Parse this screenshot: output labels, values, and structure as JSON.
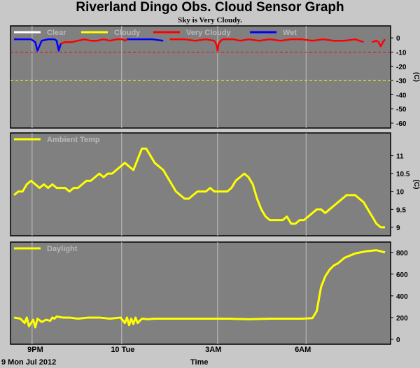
{
  "title": "Riverland Dingo Obs. Cloud Sensor Graph",
  "subtitle": "Sky is Very Cloudy.",
  "footer": {
    "date": "9 Mon Jul 2012",
    "time_label": "Time"
  },
  "x_ticks": [
    "9PM",
    "10 Tue",
    "3AM",
    "6AM"
  ],
  "chart_data": [
    {
      "type": "line",
      "name": "cloud",
      "ylabel": "(C)",
      "ylim": [
        -60,
        5
      ],
      "yticks": [
        0,
        -10,
        -20,
        -30,
        -40,
        -50,
        -60
      ],
      "legend": [
        {
          "name": "Clear",
          "color": "#ffffff"
        },
        {
          "name": "Cloudy",
          "color": "#ffff00"
        },
        {
          "name": "Very Cloudy",
          "color": "#ff0000"
        },
        {
          "name": "Wet",
          "color": "#0000ff"
        }
      ],
      "thresholds": [
        {
          "value": -10,
          "color": "#ff0000"
        },
        {
          "value": -30,
          "color": "#ffff00"
        }
      ],
      "x": [
        0,
        0.3,
        0.6,
        0.8,
        1.0,
        1.1,
        1.3,
        1.6,
        1.9,
        2.0,
        2.1,
        2.2,
        2.4,
        2.7,
        3.0,
        3.3,
        3.6,
        3.9,
        4.2,
        4.5,
        4.8,
        5.1,
        5.2,
        5.3,
        5.4,
        5.7,
        6.0,
        6.5,
        7.0,
        7.3,
        7.6,
        8.0,
        8.5,
        9.0,
        9.4,
        9.5,
        9.55,
        9.6,
        9.7,
        9.8,
        10.0,
        10.3,
        10.6,
        11.0,
        11.5,
        12.0,
        12.5,
        13.0,
        13.5,
        14.0,
        14.5,
        15.0,
        15.5,
        16.0,
        16.4,
        16.5,
        16.8,
        17.0,
        17.1,
        17.2,
        17.3,
        17.4
      ],
      "y": [
        -1,
        -1,
        -1,
        -1,
        -3,
        -9,
        -2,
        -1,
        -1,
        -2,
        -9,
        -4,
        -3,
        -3,
        -2,
        -1,
        -2,
        -2,
        -1,
        -2,
        -1,
        -1,
        -2,
        -1,
        -1,
        -1,
        -1,
        -1,
        -2,
        -1,
        -1,
        -1,
        -2,
        -1,
        -2,
        -5,
        -9,
        -4,
        -2,
        -1,
        -1,
        -1,
        -2,
        -1,
        -2,
        -1,
        -2,
        -1,
        -1,
        -2,
        -1,
        -2,
        -2,
        -1,
        -3,
        -1,
        -3,
        -2,
        -3,
        -6,
        -3,
        -1
      ],
      "series": [
        {
          "name": "Wet",
          "color": "#0000ff",
          "ranges": [
            [
              0,
              2.2
            ],
            [
              5.3,
              7.2
            ],
            [
              16.45,
              16.6
            ]
          ]
        },
        {
          "name": "Very Cloudy",
          "color": "#ff0000",
          "ranges": [
            [
              2.2,
              5.3
            ],
            [
              7.2,
              16.45
            ],
            [
              16.6,
              17.4
            ]
          ]
        }
      ]
    },
    {
      "type": "line",
      "name": "ambient",
      "ylabel": "(C)",
      "ylim": [
        8.9,
        11.5
      ],
      "yticks": [
        9.0,
        9.5,
        10.0,
        10.5,
        11.0
      ],
      "legend": [
        {
          "name": "Ambient Temp",
          "color": "#ffff00"
        }
      ],
      "series": [
        {
          "name": "Ambient Temp",
          "color": "#ffff00",
          "x": [
            0,
            0.2,
            0.4,
            0.6,
            0.8,
            1.0,
            1.2,
            1.4,
            1.6,
            1.8,
            2.0,
            2.2,
            2.4,
            2.6,
            2.8,
            3.0,
            3.2,
            3.4,
            3.6,
            3.8,
            4.0,
            4.2,
            4.4,
            4.6,
            4.8,
            5.0,
            5.2,
            5.4,
            5.6,
            5.8,
            6.0,
            6.2,
            6.4,
            6.6,
            6.8,
            7.0,
            7.2,
            7.4,
            7.6,
            7.8,
            8.0,
            8.2,
            8.4,
            8.6,
            8.8,
            9.0,
            9.2,
            9.4,
            9.6,
            9.8,
            10.0,
            10.2,
            10.4,
            10.6,
            10.8,
            11.0,
            11.2,
            11.4,
            11.6,
            11.8,
            12.0,
            12.2,
            12.4,
            12.6,
            12.8,
            13.0,
            13.2,
            13.4,
            13.6,
            13.8,
            14.0,
            14.2,
            14.4,
            14.6,
            14.8,
            15.0,
            15.2,
            15.4,
            15.6,
            15.8,
            16.0,
            16.2,
            16.4,
            16.6,
            16.8,
            17.0,
            17.2,
            17.4
          ],
          "y": [
            9.9,
            10.0,
            10.0,
            10.2,
            10.3,
            10.2,
            10.1,
            10.2,
            10.1,
            10.2,
            10.1,
            10.1,
            10.1,
            10.0,
            10.1,
            10.1,
            10.2,
            10.3,
            10.3,
            10.4,
            10.5,
            10.4,
            10.5,
            10.5,
            10.6,
            10.7,
            10.8,
            10.7,
            10.6,
            10.9,
            11.2,
            11.2,
            11.0,
            10.8,
            10.7,
            10.6,
            10.4,
            10.2,
            10.0,
            9.9,
            9.8,
            9.8,
            9.9,
            10.0,
            10.0,
            10.0,
            10.1,
            10.0,
            10.0,
            10.0,
            10.0,
            10.1,
            10.3,
            10.4,
            10.5,
            10.4,
            10.2,
            9.8,
            9.5,
            9.3,
            9.2,
            9.2,
            9.2,
            9.2,
            9.3,
            9.1,
            9.1,
            9.2,
            9.2,
            9.3,
            9.4,
            9.5,
            9.5,
            9.4,
            9.5,
            9.6,
            9.7,
            9.8,
            9.9,
            9.9,
            9.9,
            9.8,
            9.7,
            9.5,
            9.3,
            9.1,
            9.0,
            9.0
          ]
        }
      ]
    },
    {
      "type": "line",
      "name": "daylight",
      "ylabel": "",
      "ylim": [
        0,
        850
      ],
      "yticks": [
        0,
        200,
        400,
        600,
        800
      ],
      "legend": [
        {
          "name": "Daylight",
          "color": "#ffff00"
        }
      ],
      "series": [
        {
          "name": "Daylight",
          "color": "#ffff00",
          "x": [
            0,
            0.3,
            0.5,
            0.6,
            0.7,
            0.9,
            1.0,
            1.1,
            1.3,
            1.5,
            1.7,
            1.8,
            1.9,
            2.0,
            2.3,
            2.6,
            3.0,
            3.5,
            4.0,
            4.5,
            5.0,
            5.2,
            5.3,
            5.4,
            5.5,
            5.6,
            5.7,
            5.8,
            5.9,
            6.0,
            6.3,
            6.6,
            7.0,
            8.0,
            9.0,
            10.0,
            11.0,
            12.0,
            13.0,
            13.5,
            14.0,
            14.2,
            14.4,
            14.6,
            14.8,
            15.0,
            15.2,
            15.5,
            16.0,
            16.5,
            17.0,
            17.2,
            17.4
          ],
          "y": [
            200,
            190,
            150,
            200,
            120,
            180,
            110,
            190,
            160,
            180,
            170,
            200,
            190,
            210,
            200,
            200,
            190,
            200,
            200,
            190,
            200,
            150,
            200,
            130,
            190,
            140,
            200,
            150,
            170,
            190,
            185,
            190,
            190,
            190,
            190,
            190,
            185,
            190,
            190,
            190,
            195,
            260,
            480,
            580,
            640,
            680,
            700,
            750,
            790,
            810,
            820,
            810,
            800
          ]
        }
      ]
    }
  ]
}
